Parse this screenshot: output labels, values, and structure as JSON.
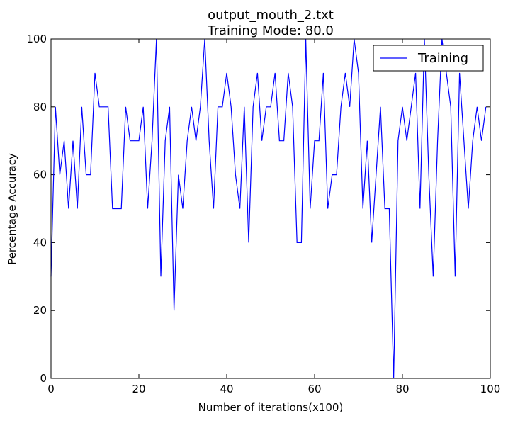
{
  "chart_data": {
    "type": "line",
    "title": "output_mouth_2.txt",
    "subtitle": "Training Mode: 80.0",
    "xlabel": "Number of iterations(x100)",
    "ylabel": "Percentage Accuracy",
    "xlim": [
      0,
      100
    ],
    "ylim": [
      0,
      100
    ],
    "x_ticks": [
      0,
      20,
      40,
      60,
      80,
      100
    ],
    "y_ticks": [
      0,
      20,
      40,
      60,
      80,
      100
    ],
    "x_tick_labels": [
      "0",
      "20",
      "40",
      "60",
      "80",
      "100"
    ],
    "y_tick_labels": [
      "0",
      "20",
      "40",
      "60",
      "80",
      "100"
    ],
    "grid": false,
    "legend_position": "top-right",
    "series": [
      {
        "name": "Training",
        "color": "#0000ff",
        "x": [
          0,
          1,
          2,
          3,
          4,
          5,
          6,
          7,
          8,
          9,
          10,
          11,
          12,
          13,
          14,
          15,
          16,
          17,
          18,
          19,
          20,
          21,
          22,
          23,
          24,
          25,
          26,
          27,
          28,
          29,
          30,
          31,
          32,
          33,
          34,
          35,
          36,
          37,
          38,
          39,
          40,
          41,
          42,
          43,
          44,
          45,
          46,
          47,
          48,
          49,
          50,
          51,
          52,
          53,
          54,
          55,
          56,
          57,
          58,
          59,
          60,
          61,
          62,
          63,
          64,
          65,
          66,
          67,
          68,
          69,
          70,
          71,
          72,
          73,
          74,
          75,
          76,
          77,
          78,
          79,
          80,
          81,
          82,
          83,
          84,
          85,
          86,
          87,
          88,
          89,
          90,
          91,
          92,
          93,
          94,
          95,
          96,
          97,
          98,
          99
        ],
        "y": [
          30,
          80,
          60,
          70,
          50,
          70,
          50,
          80,
          60,
          60,
          90,
          80,
          80,
          80,
          50,
          50,
          50,
          80,
          70,
          70,
          70,
          80,
          50,
          70,
          100,
          30,
          70,
          80,
          20,
          60,
          50,
          70,
          80,
          70,
          80,
          100,
          70,
          50,
          80,
          80,
          90,
          80,
          60,
          50,
          80,
          40,
          80,
          90,
          70,
          80,
          80,
          90,
          70,
          70,
          90,
          80,
          40,
          40,
          100,
          50,
          70,
          70,
          90,
          50,
          60,
          60,
          80,
          90,
          80,
          100,
          90,
          50,
          70,
          40,
          60,
          80,
          50,
          50,
          0,
          70,
          80,
          70,
          80,
          90,
          50,
          100,
          60,
          30,
          70,
          100,
          90,
          80,
          30,
          90,
          70,
          50,
          70,
          80,
          70,
          80
        ]
      }
    ]
  }
}
